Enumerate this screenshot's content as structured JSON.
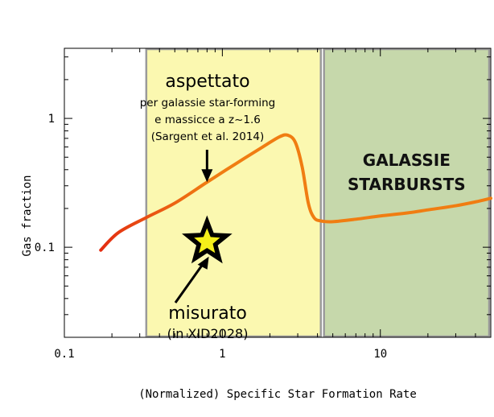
{
  "chart_data": {
    "type": "line",
    "xlabel": "(Normalized) Specific Star Formation Rate",
    "ylabel": "Gas fraction",
    "x_scale": "log",
    "y_scale": "log",
    "xlim": [
      0.1,
      50
    ],
    "ylim": [
      0.02,
      3.5
    ],
    "x_ticks": [
      {
        "value": 0.1,
        "label": "0.1"
      },
      {
        "value": 1,
        "label": "1"
      },
      {
        "value": 10,
        "label": "10"
      }
    ],
    "y_ticks": [
      {
        "value": 0.1,
        "label": "0.1"
      },
      {
        "value": 1,
        "label": "1"
      }
    ],
    "regions": [
      {
        "name": "main-sequence",
        "x_range": [
          0.33,
          4.2
        ],
        "color": "#fbf8b0",
        "border": "#9a9a9a"
      },
      {
        "name": "starburst",
        "x_range": [
          4.4,
          50
        ],
        "color": "#c6d8ab",
        "border": "#9a9a9a",
        "label_lines": [
          "GALASSIE",
          "STARBURSTS"
        ]
      }
    ],
    "series": [
      {
        "x": [
          0.17,
          0.22,
          0.33,
          0.5,
          0.8,
          1.2,
          1.8,
          2.3,
          2.6,
          2.9,
          3.2,
          3.5,
          3.8,
          4.2,
          5,
          7,
          10,
          15,
          20,
          30,
          40,
          50
        ],
        "y": [
          0.095,
          0.13,
          0.17,
          0.22,
          0.32,
          0.44,
          0.6,
          0.72,
          0.74,
          0.65,
          0.42,
          0.22,
          0.17,
          0.16,
          0.158,
          0.165,
          0.175,
          0.185,
          0.195,
          0.21,
          0.225,
          0.24
        ],
        "colors": [
          "#e32a12",
          "#f07d12"
        ]
      }
    ],
    "points": [
      {
        "name": "measured",
        "x": 0.8,
        "y": 0.11,
        "marker": "star",
        "fill": "#f4ef1a",
        "edge": "#000000"
      }
    ],
    "annotations": [
      {
        "name": "expected",
        "lines": [
          "aspettato",
          "per galassie star-forming",
          "e massicce a z~1.6",
          "(Sargent et al. 2014)"
        ],
        "arrow_to": {
          "x": 0.8,
          "y": 0.32
        }
      },
      {
        "name": "measured",
        "lines": [
          "misurato",
          "(in XID2028)"
        ],
        "arrow_to": {
          "x": 0.62,
          "y": 0.095
        }
      }
    ]
  }
}
